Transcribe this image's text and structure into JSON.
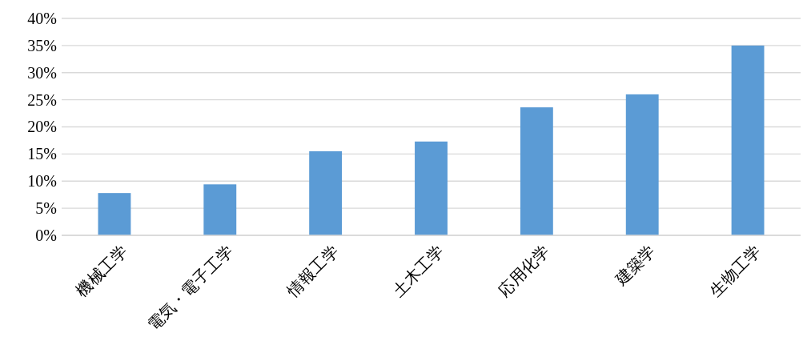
{
  "chart_data": {
    "type": "bar",
    "categories": [
      "機械工学",
      "電気・電子工学",
      "情報工学",
      "土木工学",
      "応用化学",
      "建築学",
      "生物工学"
    ],
    "values": [
      7.8,
      9.4,
      15.5,
      17.3,
      23.6,
      26.0,
      35.0
    ],
    "color": "#5b9bd5",
    "ylim": [
      0,
      40
    ],
    "yticks": [
      {
        "value": 0,
        "label": "0%"
      },
      {
        "value": 5,
        "label": "5%"
      },
      {
        "value": 10,
        "label": "10%"
      },
      {
        "value": 15,
        "label": "15%"
      },
      {
        "value": 20,
        "label": "20%"
      },
      {
        "value": 25,
        "label": "25%"
      },
      {
        "value": 30,
        "label": "30%"
      },
      {
        "value": 35,
        "label": "35%"
      },
      {
        "value": 40,
        "label": "40%"
      }
    ],
    "grid": "y"
  }
}
